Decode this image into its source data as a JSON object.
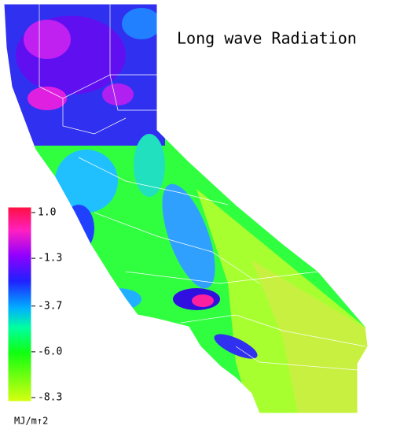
{
  "title": "Long wave Radiation",
  "colorbar": {
    "clim": [
      -8.3,
      1.0
    ],
    "ticks": [
      {
        "value": 1.0,
        "label": "1.0"
      },
      -1.3,
      -3.7,
      {
        "value": -6.0,
        "label": "-6.0"
      },
      -8.3
    ],
    "unit": "MJ/m↑2"
  }
}
